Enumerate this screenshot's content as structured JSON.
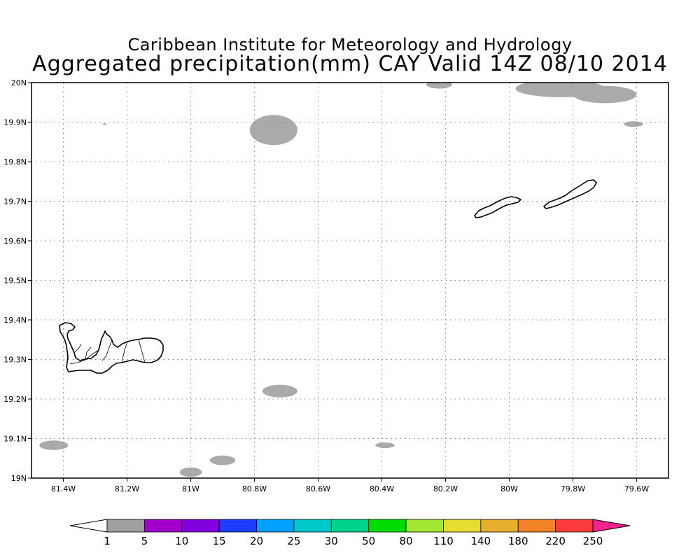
{
  "title_line1": "Caribbean Institute for Meteorology and Hydrology",
  "title_line2": "Aggregated precipitation(mm) CAY Valid 14Z 08/10 2014",
  "map": {
    "lon_range": [
      -81.5,
      -79.5
    ],
    "lat_range": [
      19.0,
      20.0
    ],
    "grid": true,
    "lon_ticks": [
      {
        "value": -81.4,
        "label": "81.4W"
      },
      {
        "value": -81.2,
        "label": "81.2W"
      },
      {
        "value": -81.0,
        "label": "81W"
      },
      {
        "value": -80.8,
        "label": "80.8W"
      },
      {
        "value": -80.6,
        "label": "80.6W"
      },
      {
        "value": -80.4,
        "label": "80.4W"
      },
      {
        "value": -80.2,
        "label": "80.2W"
      },
      {
        "value": -80.0,
        "label": "80W"
      },
      {
        "value": -79.8,
        "label": "79.8W"
      },
      {
        "value": -79.6,
        "label": "79.6W"
      }
    ],
    "lat_ticks": [
      {
        "value": 19.0,
        "label": "19N"
      },
      {
        "value": 19.1,
        "label": "19.1N"
      },
      {
        "value": 19.2,
        "label": "19.2N"
      },
      {
        "value": 19.3,
        "label": "19.3N"
      },
      {
        "value": 19.4,
        "label": "19.4N"
      },
      {
        "value": 19.5,
        "label": "19.5N"
      },
      {
        "value": 19.6,
        "label": "19.6N"
      },
      {
        "value": 19.7,
        "label": "19.7N"
      },
      {
        "value": 19.8,
        "label": "19.8N"
      },
      {
        "value": 19.9,
        "label": "19.9N"
      },
      {
        "value": 20.0,
        "label": "20N"
      }
    ],
    "precip_color": "#aaaaaa",
    "precip_areas_1_5mm": [
      {
        "lon": -80.74,
        "lat": 19.88,
        "rlon": 0.075,
        "rlat": 0.038
      },
      {
        "lon": -80.72,
        "lat": 19.22,
        "rlon": 0.055,
        "rlat": 0.016
      },
      {
        "lon": -80.9,
        "lat": 19.045,
        "rlon": 0.04,
        "rlat": 0.012
      },
      {
        "lon": -81.0,
        "lat": 19.015,
        "rlon": 0.035,
        "rlat": 0.012
      },
      {
        "lon": -81.43,
        "lat": 19.083,
        "rlon": 0.045,
        "rlat": 0.012
      },
      {
        "lon": -80.39,
        "lat": 19.083,
        "rlon": 0.03,
        "rlat": 0.007
      },
      {
        "lon": -80.22,
        "lat": 19.995,
        "rlon": 0.04,
        "rlat": 0.01
      },
      {
        "lon": -79.84,
        "lat": 19.985,
        "rlon": 0.14,
        "rlat": 0.022
      },
      {
        "lon": -79.7,
        "lat": 19.97,
        "rlon": 0.1,
        "rlat": 0.022
      },
      {
        "lon": -79.61,
        "lat": 19.895,
        "rlon": 0.03,
        "rlat": 0.007
      },
      {
        "lon": -81.27,
        "lat": 19.895,
        "rlon": 0.007,
        "rlat": 0.002
      }
    ],
    "islands": [
      {
        "name": "grand-cayman"
      },
      {
        "name": "little-cayman"
      },
      {
        "name": "cayman-brac"
      }
    ]
  },
  "colorbar": {
    "labels": [
      "1",
      "5",
      "10",
      "15",
      "20",
      "25",
      "30",
      "50",
      "80",
      "110",
      "140",
      "180",
      "220",
      "250"
    ],
    "below_color": "#ffffff",
    "above_color": "#f0228c",
    "colors": [
      "#a0a0a0",
      "#a000c8",
      "#8200dc",
      "#1e3cff",
      "#00a0ff",
      "#00c8c8",
      "#00d28c",
      "#00dc00",
      "#a0e632",
      "#e6dc32",
      "#e6af2d",
      "#f08228",
      "#fa3c3c"
    ]
  }
}
